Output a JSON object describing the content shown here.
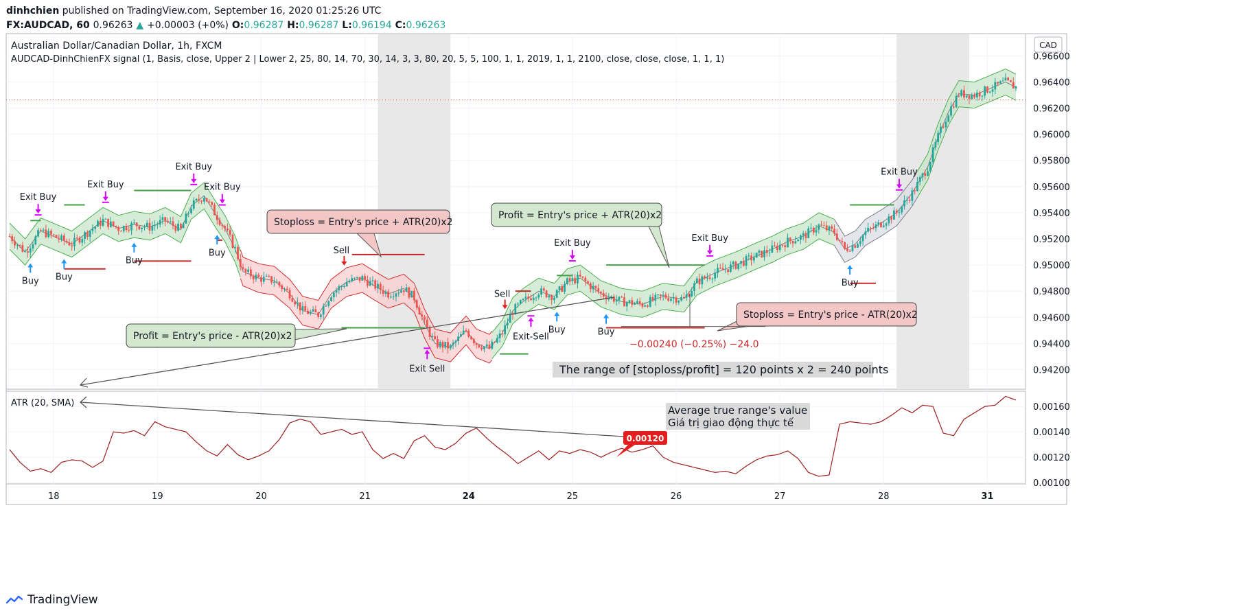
{
  "header": {
    "user": "dinhchien",
    "published": "published on TradingView.com, September 16, 2020 01:25:26 UTC",
    "symbol": "FX:AUDCAD, 60",
    "last": "0.96263",
    "change_arrow": "▲",
    "change": "+0.00003 (+0%)",
    "o_label": "O:",
    "o": "0.96287",
    "h_label": "H:",
    "h": "0.96287",
    "l_label": "L:",
    "l": "0.96194",
    "c_label": "C:",
    "c": "0.96263"
  },
  "footer": {
    "brand": "TradingView",
    "logo_icon": "tradingview-logo-icon"
  },
  "colors": {
    "up": "#26a69a",
    "down": "#ef5350",
    "buy_arrow": "#2196f3",
    "sell_arrow": "#e91e1e",
    "exit_arrow": "#d500f9",
    "band_green": "#c8e6c9",
    "band_red": "#f5c6c6",
    "atr_line": "#9c1d1d",
    "price_line": "#ef5350"
  },
  "chart_data": [
    {
      "type": "candlestick",
      "title": "Australian Dollar/Canadian Dollar, 1h, FXCM",
      "subtitle": "AUDCAD-DinhChienFX signal (1, Basis, close, Upper 2 | Lower 2, 25, 80, 14, 70, 30, 14, 3, 3, 80, 20, 5, 5, 100, 1, 1, 2019, 1, 1, 2100, close, close, close, 1, 1, 1)",
      "currency_label": "CAD",
      "y_ticks": [
        "0.96600",
        "0.96400",
        "0.96200",
        "0.96000",
        "0.95800",
        "0.95600",
        "0.95400",
        "0.95200",
        "0.95000",
        "0.94800",
        "0.94600",
        "0.94400",
        "0.94200"
      ],
      "ylim": [
        0.9405,
        0.9677
      ],
      "x_ticks": [
        "18",
        "19",
        "20",
        "21",
        "24",
        "25",
        "26",
        "27",
        "28",
        "31"
      ],
      "x_tick_index": [
        17,
        57,
        97,
        137,
        177,
        217,
        257,
        297,
        337,
        377
      ],
      "current_price": 0.96263,
      "shaded_ranges": [
        [
          142,
          170
        ],
        [
          342,
          370
        ]
      ],
      "close_path": [
        [
          0,
          0.9522
        ],
        [
          6,
          0.951
        ],
        [
          12,
          0.9526
        ],
        [
          18,
          0.9521
        ],
        [
          24,
          0.9516
        ],
        [
          30,
          0.9525
        ],
        [
          36,
          0.9534
        ],
        [
          42,
          0.9528
        ],
        [
          48,
          0.9531
        ],
        [
          54,
          0.9529
        ],
        [
          60,
          0.9534
        ],
        [
          66,
          0.9527
        ],
        [
          70,
          0.9545
        ],
        [
          75,
          0.9553
        ],
        [
          79,
          0.954
        ],
        [
          83,
          0.9528
        ],
        [
          87,
          0.9512
        ],
        [
          90,
          0.9495
        ],
        [
          96,
          0.949
        ],
        [
          102,
          0.9488
        ],
        [
          108,
          0.9478
        ],
        [
          113,
          0.9465
        ],
        [
          119,
          0.9462
        ],
        [
          124,
          0.9478
        ],
        [
          130,
          0.9487
        ],
        [
          136,
          0.949
        ],
        [
          140,
          0.9485
        ],
        [
          146,
          0.9478
        ],
        [
          152,
          0.9482
        ],
        [
          156,
          0.9475
        ],
        [
          160,
          0.9455
        ],
        [
          164,
          0.944
        ],
        [
          170,
          0.9437
        ],
        [
          176,
          0.945
        ],
        [
          180,
          0.944
        ],
        [
          185,
          0.9436
        ],
        [
          190,
          0.9448
        ],
        [
          194,
          0.9465
        ],
        [
          198,
          0.9472
        ],
        [
          204,
          0.948
        ],
        [
          210,
          0.9476
        ],
        [
          215,
          0.9487
        ],
        [
          220,
          0.949
        ],
        [
          228,
          0.9478
        ],
        [
          236,
          0.9472
        ],
        [
          244,
          0.947
        ],
        [
          252,
          0.9476
        ],
        [
          260,
          0.9474
        ],
        [
          265,
          0.9487
        ],
        [
          272,
          0.9494
        ],
        [
          280,
          0.95
        ],
        [
          288,
          0.9507
        ],
        [
          294,
          0.9512
        ],
        [
          300,
          0.9518
        ],
        [
          306,
          0.9522
        ],
        [
          312,
          0.953
        ],
        [
          318,
          0.9525
        ],
        [
          322,
          0.9512
        ],
        [
          326,
          0.9516
        ],
        [
          330,
          0.9525
        ],
        [
          336,
          0.9532
        ],
        [
          342,
          0.954
        ],
        [
          348,
          0.9555
        ],
        [
          354,
          0.9575
        ],
        [
          358,
          0.9598
        ],
        [
          362,
          0.9617
        ],
        [
          366,
          0.9631
        ],
        [
          372,
          0.963
        ],
        [
          378,
          0.9635
        ],
        [
          384,
          0.964
        ],
        [
          388,
          0.9636
        ]
      ],
      "band_segments": [
        {
          "color": "green",
          "from": 0,
          "to": 89
        },
        {
          "color": "red",
          "from": 89,
          "to": 186
        },
        {
          "color": "green",
          "from": 186,
          "to": 318
        },
        {
          "color": "grey",
          "from": 318,
          "to": 350
        },
        {
          "color": "green",
          "from": 350,
          "to": 388
        }
      ],
      "signals": [
        {
          "type": "buy",
          "i": 8,
          "label": "Buy"
        },
        {
          "type": "buy",
          "i": 21,
          "label": "Buy"
        },
        {
          "type": "buy",
          "i": 48,
          "label": "Buy"
        },
        {
          "type": "buy",
          "i": 80,
          "label": "Buy"
        },
        {
          "type": "buy",
          "i": 211,
          "label": "Buy"
        },
        {
          "type": "buy",
          "i": 230,
          "label": "Buy"
        },
        {
          "type": "buy",
          "i": 324,
          "label": "Buy"
        },
        {
          "type": "exit_buy",
          "i": 11,
          "label": "Exit Buy"
        },
        {
          "type": "exit_buy",
          "i": 37,
          "label": "Exit Buy"
        },
        {
          "type": "exit_buy",
          "i": 71,
          "label": "Exit Buy"
        },
        {
          "type": "exit_buy",
          "i": 82,
          "label": "Exit Buy"
        },
        {
          "type": "exit_buy",
          "i": 217,
          "label": "Exit Buy"
        },
        {
          "type": "exit_buy",
          "i": 270,
          "label": "Exit Buy"
        },
        {
          "type": "exit_buy",
          "i": 343,
          "label": "Exit Buy"
        },
        {
          "type": "sell",
          "i": 129,
          "label": "Sell"
        },
        {
          "type": "sell",
          "i": 191,
          "label": "Sell"
        },
        {
          "type": "exit_sell",
          "i": 161,
          "label": "Exit Sell"
        },
        {
          "type": "exit_sell",
          "i": 201,
          "label": "Exit-Sell"
        }
      ],
      "level_lines": [
        {
          "color": "green",
          "i0": 8,
          "i1": 12,
          "y": 0.9534
        },
        {
          "color": "green",
          "i0": 21,
          "i1": 29,
          "y": 0.9546
        },
        {
          "color": "green",
          "i0": 48,
          "i1": 70,
          "y": 0.9557
        },
        {
          "color": "green",
          "i0": 128,
          "i1": 160,
          "y": 0.9452
        },
        {
          "color": "green",
          "i0": 189,
          "i1": 200,
          "y": 0.9432
        },
        {
          "color": "green",
          "i0": 211,
          "i1": 217,
          "y": 0.9492
        },
        {
          "color": "green",
          "i0": 230,
          "i1": 268,
          "y": 0.95
        },
        {
          "color": "green",
          "i0": 324,
          "i1": 341,
          "y": 0.9546
        },
        {
          "color": "red",
          "i0": 21,
          "i1": 37,
          "y": 0.9497
        },
        {
          "color": "red",
          "i0": 48,
          "i1": 70,
          "y": 0.9503
        },
        {
          "color": "red",
          "i0": 80,
          "i1": 82,
          "y": 0.9519
        },
        {
          "color": "red",
          "i0": 132,
          "i1": 160,
          "y": 0.9508
        },
        {
          "color": "red",
          "i0": 195,
          "i1": 201,
          "y": 0.948
        },
        {
          "color": "red",
          "i0": 230,
          "i1": 268,
          "y": 0.9452
        },
        {
          "color": "red",
          "i0": 324,
          "i1": 334,
          "y": 0.9486
        }
      ],
      "annotations": [
        {
          "text": "Stoploss = Entry's price + ATR(20)x2",
          "style": "red"
        },
        {
          "text": "Profit = Entry's price + ATR(20)x2",
          "style": "green"
        },
        {
          "text": "Profit = Entry's price - ATR(20)x2",
          "style": "green"
        },
        {
          "text": "Stoploss = Entry's price - ATR(20)x2",
          "style": "red"
        },
        {
          "text": "The range of [stoploss/profit] = 120 points x 2 = 240 points",
          "style": "grey"
        }
      ],
      "measure_label": "−0.00240 (−0.25%) −24.0"
    },
    {
      "type": "line",
      "title": "ATR (20, SMA)",
      "y_ticks": [
        "0.00160",
        "0.00140",
        "0.00120",
        "0.00100"
      ],
      "ylim": [
        0.00099,
        0.00172
      ],
      "atr_path": [
        [
          0,
          0.00126
        ],
        [
          4,
          0.00116
        ],
        [
          8,
          0.00109
        ],
        [
          12,
          0.00111
        ],
        [
          16,
          0.00108
        ],
        [
          20,
          0.00116
        ],
        [
          24,
          0.00118
        ],
        [
          28,
          0.00117
        ],
        [
          32,
          0.00112
        ],
        [
          36,
          0.00117
        ],
        [
          40,
          0.0014
        ],
        [
          44,
          0.00139
        ],
        [
          48,
          0.00141
        ],
        [
          52,
          0.00137
        ],
        [
          56,
          0.00148
        ],
        [
          60,
          0.00144
        ],
        [
          64,
          0.00142
        ],
        [
          68,
          0.0014
        ],
        [
          72,
          0.00132
        ],
        [
          76,
          0.00125
        ],
        [
          80,
          0.00121
        ],
        [
          84,
          0.0013
        ],
        [
          88,
          0.00122
        ],
        [
          92,
          0.00118
        ],
        [
          96,
          0.00121
        ],
        [
          100,
          0.00125
        ],
        [
          104,
          0.00134
        ],
        [
          108,
          0.00147
        ],
        [
          112,
          0.0015
        ],
        [
          116,
          0.00148
        ],
        [
          120,
          0.00138
        ],
        [
          124,
          0.0014
        ],
        [
          128,
          0.00142
        ],
        [
          132,
          0.00138
        ],
        [
          136,
          0.0014
        ],
        [
          140,
          0.00126
        ],
        [
          144,
          0.00119
        ],
        [
          148,
          0.00123
        ],
        [
          152,
          0.00119
        ],
        [
          156,
          0.00133
        ],
        [
          160,
          0.00137
        ],
        [
          164,
          0.00128
        ],
        [
          168,
          0.00126
        ],
        [
          172,
          0.00131
        ],
        [
          176,
          0.00139
        ],
        [
          180,
          0.00143
        ],
        [
          184,
          0.00135
        ],
        [
          188,
          0.00128
        ],
        [
          192,
          0.00122
        ],
        [
          196,
          0.00115
        ],
        [
          200,
          0.0012
        ],
        [
          204,
          0.00125
        ],
        [
          208,
          0.00118
        ],
        [
          212,
          0.00125
        ],
        [
          216,
          0.00123
        ],
        [
          220,
          0.00126
        ],
        [
          224,
          0.00124
        ],
        [
          228,
          0.0012
        ],
        [
          232,
          0.00124
        ],
        [
          236,
          0.00127
        ],
        [
          240,
          0.00124
        ],
        [
          244,
          0.00126
        ],
        [
          248,
          0.00129
        ],
        [
          252,
          0.0012
        ],
        [
          256,
          0.00116
        ],
        [
          260,
          0.00114
        ],
        [
          264,
          0.00112
        ],
        [
          268,
          0.0011
        ],
        [
          272,
          0.00108
        ],
        [
          276,
          0.00109
        ],
        [
          280,
          0.00107
        ],
        [
          284,
          0.00113
        ],
        [
          288,
          0.00118
        ],
        [
          292,
          0.00121
        ],
        [
          296,
          0.00122
        ],
        [
          300,
          0.00125
        ],
        [
          304,
          0.00119
        ],
        [
          308,
          0.00108
        ],
        [
          312,
          0.00105
        ],
        [
          316,
          0.00106
        ],
        [
          320,
          0.00146
        ],
        [
          324,
          0.00148
        ],
        [
          328,
          0.00147
        ],
        [
          332,
          0.00146
        ],
        [
          336,
          0.00148
        ],
        [
          340,
          0.00153
        ],
        [
          344,
          0.00159
        ],
        [
          348,
          0.00155
        ],
        [
          352,
          0.00161
        ],
        [
          356,
          0.0016
        ],
        [
          360,
          0.00139
        ],
        [
          364,
          0.00137
        ],
        [
          368,
          0.0015
        ],
        [
          372,
          0.00155
        ],
        [
          376,
          0.0016
        ],
        [
          380,
          0.00161
        ],
        [
          384,
          0.00168
        ],
        [
          388,
          0.00165
        ]
      ],
      "value_badge": "0.00120",
      "annotation_line1": "Average true range's value",
      "annotation_line2": "Giá trị giao động thực tế"
    }
  ]
}
